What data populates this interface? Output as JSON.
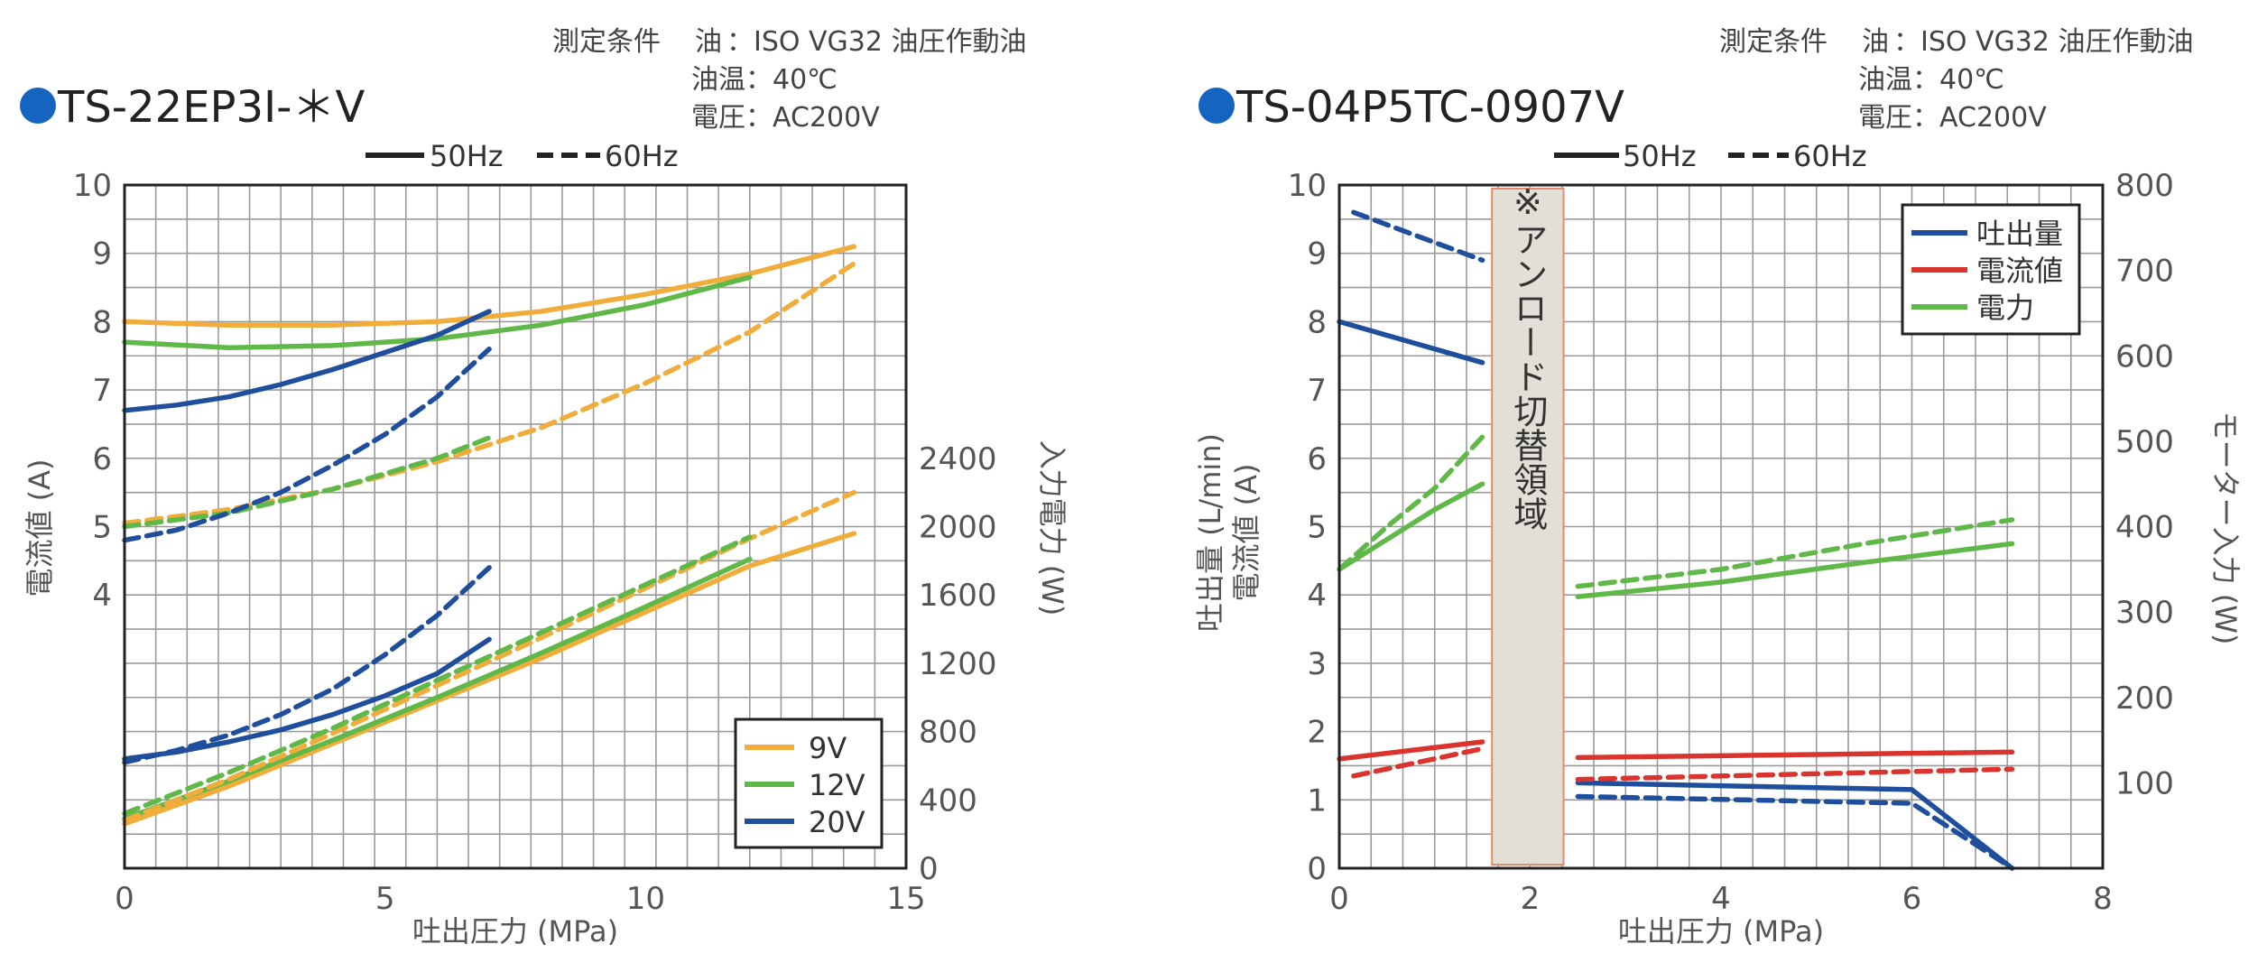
{
  "chart_data": [
    {
      "type": "line",
      "title": "TS-22EP3I-＊V",
      "conditions": [
        "測定条件",
        "油",
        "：ISO VG32 油圧作動油",
        "油温：40℃",
        "電圧：AC200V"
      ],
      "hz_legend": [
        {
          "label": "50Hz",
          "dash": "solid"
        },
        {
          "label": "60Hz",
          "dash": "dashed"
        }
      ],
      "xlabel": "吐出圧力 (MPa)",
      "ylabel_left": "電流値 (A)",
      "ylabel_right": "入力電力 (W)",
      "xlim": [
        0,
        15
      ],
      "ylim_left": [
        0,
        10
      ],
      "ylim_right": [
        0,
        4000
      ],
      "x_ticks": [
        "0",
        "5",
        "10",
        "15"
      ],
      "left_ticks": [
        "4",
        "5",
        "6",
        "7",
        "8",
        "9",
        "10"
      ],
      "right_ticks": [
        "0",
        "400",
        "800",
        "1200",
        "1600",
        "2000",
        "2400"
      ],
      "legend": [
        {
          "label": "9V",
          "color": "#F0AD3C"
        },
        {
          "label": "12V",
          "color": "#5FB847"
        },
        {
          "label": "20V",
          "color": "#1F4E9C"
        }
      ],
      "series": [
        {
          "name": "9V",
          "freq": "50Hz",
          "quantity": "電流値",
          "axis": "left",
          "color": "#F0AD3C",
          "dash": "solid",
          "x": [
            0,
            2,
            4,
            6,
            8,
            10,
            12,
            14
          ],
          "y": [
            8.0,
            7.95,
            7.95,
            8.0,
            8.15,
            8.4,
            8.7,
            9.1
          ]
        },
        {
          "name": "12V",
          "freq": "50Hz",
          "quantity": "電流値",
          "axis": "left",
          "color": "#5FB847",
          "dash": "solid",
          "x": [
            0,
            2,
            4,
            6,
            8,
            10,
            12
          ],
          "y": [
            7.7,
            7.62,
            7.65,
            7.75,
            7.95,
            8.25,
            8.65
          ]
        },
        {
          "name": "20V",
          "freq": "50Hz",
          "quantity": "電流値",
          "axis": "left",
          "color": "#1F4E9C",
          "dash": "solid",
          "x": [
            0,
            1,
            2,
            3,
            4,
            5,
            6,
            7
          ],
          "y": [
            6.7,
            6.78,
            6.9,
            7.08,
            7.3,
            7.55,
            7.8,
            8.15
          ]
        },
        {
          "name": "9V",
          "freq": "60Hz",
          "quantity": "電流値",
          "axis": "left",
          "color": "#F0AD3C",
          "dash": "dashed",
          "x": [
            0,
            2,
            4,
            6,
            8,
            10,
            12,
            14
          ],
          "y": [
            5.05,
            5.25,
            5.55,
            5.95,
            6.45,
            7.1,
            7.85,
            8.85
          ]
        },
        {
          "name": "12V",
          "freq": "60Hz",
          "quantity": "電流値",
          "axis": "left",
          "color": "#5FB847",
          "dash": "dashed",
          "x": [
            0,
            2,
            4,
            6,
            7
          ],
          "y": [
            5.0,
            5.2,
            5.55,
            6.0,
            6.3
          ]
        },
        {
          "name": "20V",
          "freq": "60Hz",
          "quantity": "電流値",
          "axis": "left",
          "color": "#1F4E9C",
          "dash": "dashed",
          "x": [
            0,
            1,
            2,
            3,
            4,
            5,
            6,
            7
          ],
          "y": [
            4.8,
            4.95,
            5.2,
            5.5,
            5.9,
            6.35,
            6.9,
            7.6
          ]
        },
        {
          "name": "9V",
          "freq": "50Hz",
          "quantity": "入力電力",
          "axis": "right",
          "color": "#F0AD3C",
          "dash": "solid",
          "x": [
            0,
            2,
            4,
            6,
            8,
            10,
            12,
            14
          ],
          "y": [
            260,
            480,
            730,
            980,
            1230,
            1500,
            1770,
            1960
          ]
        },
        {
          "name": "12V",
          "freq": "50Hz",
          "quantity": "入力電力",
          "axis": "right",
          "color": "#5FB847",
          "dash": "solid",
          "x": [
            0,
            2,
            4,
            6,
            8,
            10,
            12
          ],
          "y": [
            290,
            510,
            750,
            1000,
            1260,
            1530,
            1810
          ]
        },
        {
          "name": "20V",
          "freq": "50Hz",
          "quantity": "入力電力",
          "axis": "right",
          "color": "#1F4E9C",
          "dash": "solid",
          "x": [
            0,
            1,
            2,
            3,
            4,
            5,
            6,
            7
          ],
          "y": [
            640,
            680,
            740,
            810,
            900,
            1010,
            1140,
            1340
          ]
        },
        {
          "name": "9V",
          "freq": "60Hz",
          "quantity": "入力電力",
          "axis": "right",
          "color": "#F0AD3C",
          "dash": "dashed",
          "x": [
            0,
            2,
            4,
            6,
            8,
            10,
            12,
            14
          ],
          "y": [
            280,
            520,
            790,
            1070,
            1350,
            1640,
            1930,
            2200
          ]
        },
        {
          "name": "12V",
          "freq": "60Hz",
          "quantity": "入力電力",
          "axis": "right",
          "color": "#5FB847",
          "dash": "dashed",
          "x": [
            0,
            2,
            4,
            6,
            8,
            10,
            12
          ],
          "y": [
            320,
            560,
            820,
            1100,
            1380,
            1660,
            1940
          ]
        },
        {
          "name": "20V",
          "freq": "60Hz",
          "quantity": "入力電力",
          "axis": "right",
          "color": "#1F4E9C",
          "dash": "dashed",
          "x": [
            0,
            1,
            2,
            3,
            4,
            5,
            6,
            7
          ],
          "y": [
            620,
            690,
            780,
            900,
            1050,
            1250,
            1480,
            1760
          ]
        }
      ]
    },
    {
      "type": "line",
      "title": "TS-04P5TC-0907V",
      "conditions": [
        "測定条件",
        "油",
        "：ISO VG32 油圧作動油",
        "油温：40℃",
        "電圧：AC200V"
      ],
      "hz_legend": [
        {
          "label": "50Hz",
          "dash": "solid"
        },
        {
          "label": "60Hz",
          "dash": "dashed"
        }
      ],
      "xlabel": "吐出圧力 (MPa)",
      "ylabel_left": [
        "吐出量 (L/min)",
        "電流値 (A)"
      ],
      "ylabel_right": "モーター入力 (W)",
      "xlim": [
        0,
        8
      ],
      "ylim_left": [
        0,
        10
      ],
      "ylim_right": [
        0,
        800
      ],
      "x_ticks": [
        "0",
        "2",
        "4",
        "6",
        "8"
      ],
      "left_ticks": [
        "0",
        "1",
        "2",
        "3",
        "4",
        "5",
        "6",
        "7",
        "8",
        "9",
        "10"
      ],
      "right_ticks": [
        "100",
        "200",
        "300",
        "400",
        "500",
        "600",
        "700",
        "800"
      ],
      "legend": [
        {
          "label": "吐出量",
          "color": "#1F4E9C"
        },
        {
          "label": "電流値",
          "color": "#D9352E"
        },
        {
          "label": "電力",
          "color": "#5FB847"
        }
      ],
      "region_label": "※アンロード切替領域",
      "region_x": [
        1.6,
        2.35
      ],
      "series": [
        {
          "name": "吐出量",
          "freq": "50Hz",
          "axis": "left",
          "color": "#1F4E9C",
          "dash": "solid",
          "x": [
            0,
            1.5
          ],
          "y": [
            8.0,
            7.4
          ]
        },
        {
          "name": "吐出量",
          "freq": "60Hz",
          "axis": "left",
          "color": "#1F4E9C",
          "dash": "dashed",
          "x": [
            0.15,
            1.5
          ],
          "y": [
            9.6,
            8.9
          ]
        },
        {
          "name": "吐出量",
          "freq": "50Hz",
          "axis": "left",
          "color": "#1F4E9C",
          "dash": "solid",
          "x": [
            2.5,
            6.0,
            7.05
          ],
          "y": [
            1.25,
            1.15,
            0.0
          ]
        },
        {
          "name": "吐出量",
          "freq": "60Hz",
          "axis": "left",
          "color": "#1F4E9C",
          "dash": "dashed",
          "x": [
            2.5,
            6.0,
            7.05
          ],
          "y": [
            1.05,
            0.95,
            0.0
          ]
        },
        {
          "name": "電流値",
          "freq": "50Hz",
          "axis": "left",
          "color": "#D9352E",
          "dash": "solid",
          "x": [
            0,
            1.5
          ],
          "y": [
            1.6,
            1.85
          ]
        },
        {
          "name": "電流値",
          "freq": "60Hz",
          "axis": "left",
          "color": "#D9352E",
          "dash": "dashed",
          "x": [
            0.15,
            1.5
          ],
          "y": [
            1.35,
            1.75
          ]
        },
        {
          "name": "電流値",
          "freq": "50Hz",
          "axis": "left",
          "color": "#D9352E",
          "dash": "solid",
          "x": [
            2.5,
            7.05
          ],
          "y": [
            1.62,
            1.7
          ]
        },
        {
          "name": "電流値",
          "freq": "60Hz",
          "axis": "left",
          "color": "#D9352E",
          "dash": "dashed",
          "x": [
            2.5,
            7.05
          ],
          "y": [
            1.3,
            1.45
          ]
        },
        {
          "name": "電力",
          "freq": "50Hz",
          "axis": "right",
          "color": "#5FB847",
          "dash": "solid",
          "x": [
            0,
            0.5,
            1.0,
            1.5
          ],
          "y": [
            350,
            385,
            420,
            450
          ]
        },
        {
          "name": "電力",
          "freq": "60Hz",
          "axis": "right",
          "color": "#5FB847",
          "dash": "dashed",
          "x": [
            0,
            0.5,
            1.0,
            1.5
          ],
          "y": [
            350,
            400,
            445,
            505
          ]
        },
        {
          "name": "電力",
          "freq": "50Hz",
          "axis": "right",
          "color": "#5FB847",
          "dash": "solid",
          "x": [
            2.5,
            4.0,
            5.5,
            7.05
          ],
          "y": [
            318,
            335,
            358,
            380
          ]
        },
        {
          "name": "電力",
          "freq": "60Hz",
          "axis": "right",
          "color": "#5FB847",
          "dash": "dashed",
          "x": [
            2.5,
            4.0,
            5.5,
            7.05
          ],
          "y": [
            330,
            350,
            380,
            408
          ]
        }
      ]
    }
  ]
}
